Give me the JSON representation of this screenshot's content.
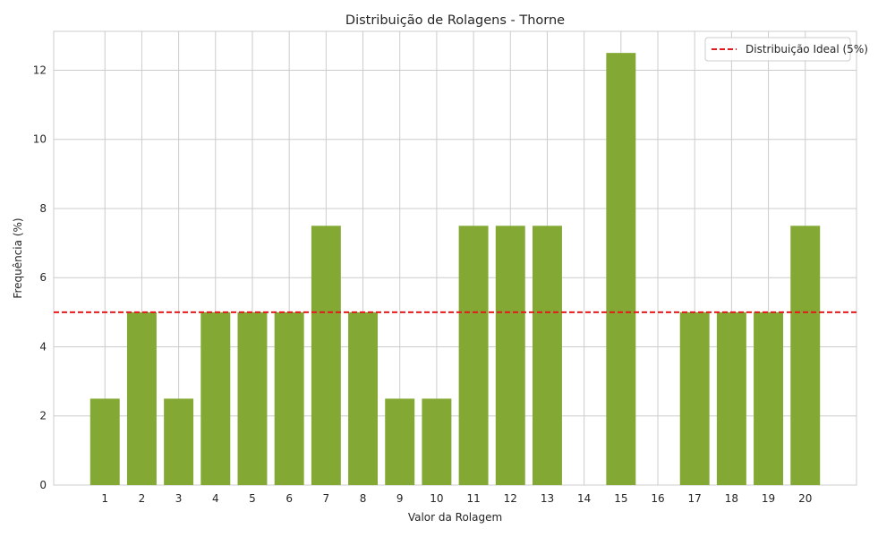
{
  "chart_data": {
    "type": "bar",
    "title": "Distribuição de Rolagens - Thorne",
    "xlabel": "Valor da Rolagem",
    "ylabel": "Frequência (%)",
    "categories": [
      "1",
      "2",
      "3",
      "4",
      "5",
      "6",
      "7",
      "8",
      "9",
      "10",
      "11",
      "12",
      "13",
      "14",
      "15",
      "16",
      "17",
      "18",
      "19",
      "20"
    ],
    "values": [
      2.5,
      5,
      2.5,
      5,
      5,
      5,
      7.5,
      5,
      2.5,
      2.5,
      7.5,
      7.5,
      7.5,
      0,
      12.5,
      0,
      5,
      5,
      5,
      7.5
    ],
    "ylim": [
      0,
      13.125
    ],
    "yticks": [
      0,
      2,
      4,
      6,
      8,
      10,
      12
    ],
    "grid": true,
    "bar_color": "#83a934",
    "reference_line": {
      "value": 5,
      "label": "Distribuição Ideal (5%)",
      "color": "#e41a1c",
      "style": "dashed"
    },
    "legend": {
      "position": "top-right",
      "entries": [
        "Distribuição Ideal (5%)"
      ]
    }
  }
}
